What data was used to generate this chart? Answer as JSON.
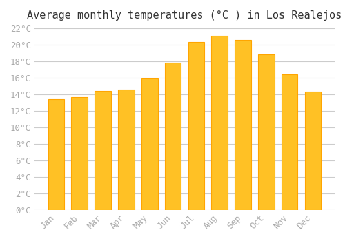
{
  "title": "Average monthly temperatures (°C ) in Los Realejos",
  "months": [
    "Jan",
    "Feb",
    "Mar",
    "Apr",
    "May",
    "Jun",
    "Jul",
    "Aug",
    "Sep",
    "Oct",
    "Nov",
    "Dec"
  ],
  "values": [
    13.4,
    13.7,
    14.4,
    14.6,
    15.9,
    17.8,
    20.3,
    21.1,
    20.6,
    18.8,
    16.4,
    14.3
  ],
  "bar_color": "#FFC125",
  "bar_edge_color": "#FFA500",
  "ylim": [
    0,
    22
  ],
  "yticks": [
    0,
    2,
    4,
    6,
    8,
    10,
    12,
    14,
    16,
    18,
    20,
    22
  ],
  "background_color": "#FFFFFF",
  "grid_color": "#CCCCCC",
  "tick_label_color": "#AAAAAA",
  "title_color": "#333333",
  "title_fontsize": 11,
  "tick_fontsize": 9,
  "font_family": "monospace"
}
